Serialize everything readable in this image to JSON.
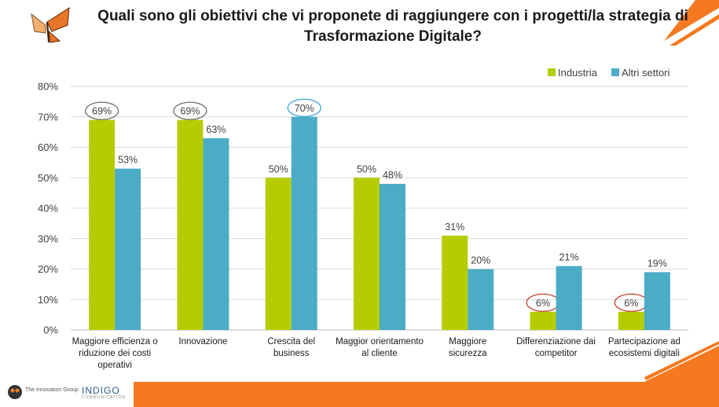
{
  "title_line1": "Quali sono gli obiettivi che vi proponete di raggiungere con i progetti/la strategia di",
  "title_line2": "Trasformazione Digitale?",
  "footer": {
    "logo1_text": "The Innovation Group",
    "logo2_text": "INDIGO",
    "logo2_sub": "COMMUNICATION"
  },
  "colors": {
    "industria": "#b5cc00",
    "altri": "#4bacc6",
    "accent_orange": "#f47920",
    "circle_dark": "#6b6b6b",
    "circle_blue": "#3aa6d8",
    "circle_red": "#c0392b"
  },
  "chart_data": {
    "type": "bar",
    "title": "Quali sono gli obiettivi che vi proponete di raggiungere con i progetti/la strategia di Trasformazione Digitale?",
    "categories": [
      [
        "Maggiore efficienza o",
        "riduzione dei costi",
        "operativi"
      ],
      [
        "Innovazione"
      ],
      [
        "Crescita del",
        "business"
      ],
      [
        "Maggior orientamento",
        "al cliente"
      ],
      [
        "Maggiore",
        "sicurezza"
      ],
      [
        "Differenziazione dai",
        "competitor"
      ],
      [
        "Partecipazione ad",
        "ecosistemi digitali"
      ]
    ],
    "series": [
      {
        "name": "Industria",
        "values": [
          69,
          69,
          50,
          50,
          31,
          6,
          6
        ],
        "labels": [
          "69%",
          "69%",
          "50%",
          "50%",
          "31%",
          "6%",
          "6%"
        ]
      },
      {
        "name": "Altri settori",
        "values": [
          53,
          63,
          70,
          48,
          20,
          21,
          19
        ],
        "labels": [
          "53%",
          "63%",
          "70%",
          "48%",
          "20%",
          "21%",
          "19%"
        ]
      }
    ],
    "y_ticks": [
      "0%",
      "10%",
      "20%",
      "30%",
      "40%",
      "50%",
      "60%",
      "70%",
      "80%"
    ],
    "ylim": [
      0,
      80
    ],
    "grid": true,
    "legend_position": "top-right",
    "highlights": [
      {
        "series": 0,
        "index": 0,
        "color": "dark"
      },
      {
        "series": 0,
        "index": 1,
        "color": "dark"
      },
      {
        "series": 1,
        "index": 2,
        "color": "blue"
      },
      {
        "series": 0,
        "index": 5,
        "color": "red"
      },
      {
        "series": 0,
        "index": 6,
        "color": "red"
      }
    ]
  }
}
